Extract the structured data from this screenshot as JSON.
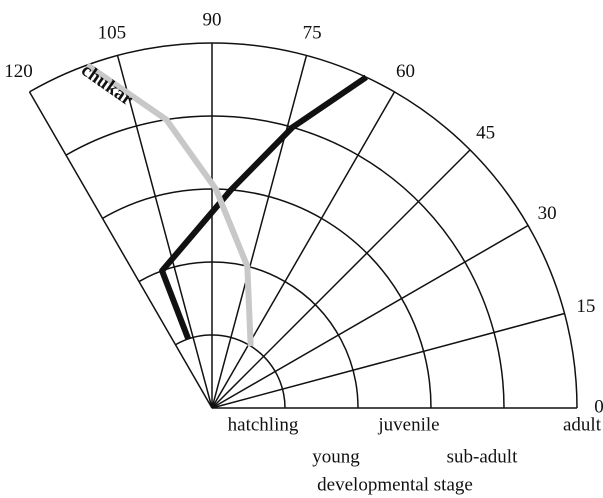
{
  "chart_data": {
    "type": "polar-line",
    "xlabel": "developmental stage",
    "rlim": [
      0,
      5
    ],
    "rticks": [
      {
        "value": 1,
        "label": "hatchling"
      },
      {
        "value": 2,
        "label": "young"
      },
      {
        "value": 3,
        "label": "juvenile"
      },
      {
        "value": 4,
        "label": "sub-adult"
      },
      {
        "value": 5,
        "label": "adult"
      }
    ],
    "thetalim": [
      0,
      120
    ],
    "thetaticks": [
      0,
      15,
      30,
      45,
      60,
      75,
      90,
      105,
      120
    ],
    "x": [
      1,
      2,
      3,
      4,
      5
    ],
    "series": [
      {
        "color": "#111111",
        "values": [
          109,
          110,
          85,
          74,
          65
        ]
      },
      {
        "name": "chukar",
        "color": "#c8c8c8",
        "values": [
          58,
          76,
          89,
          99,
          110
        ]
      }
    ]
  }
}
